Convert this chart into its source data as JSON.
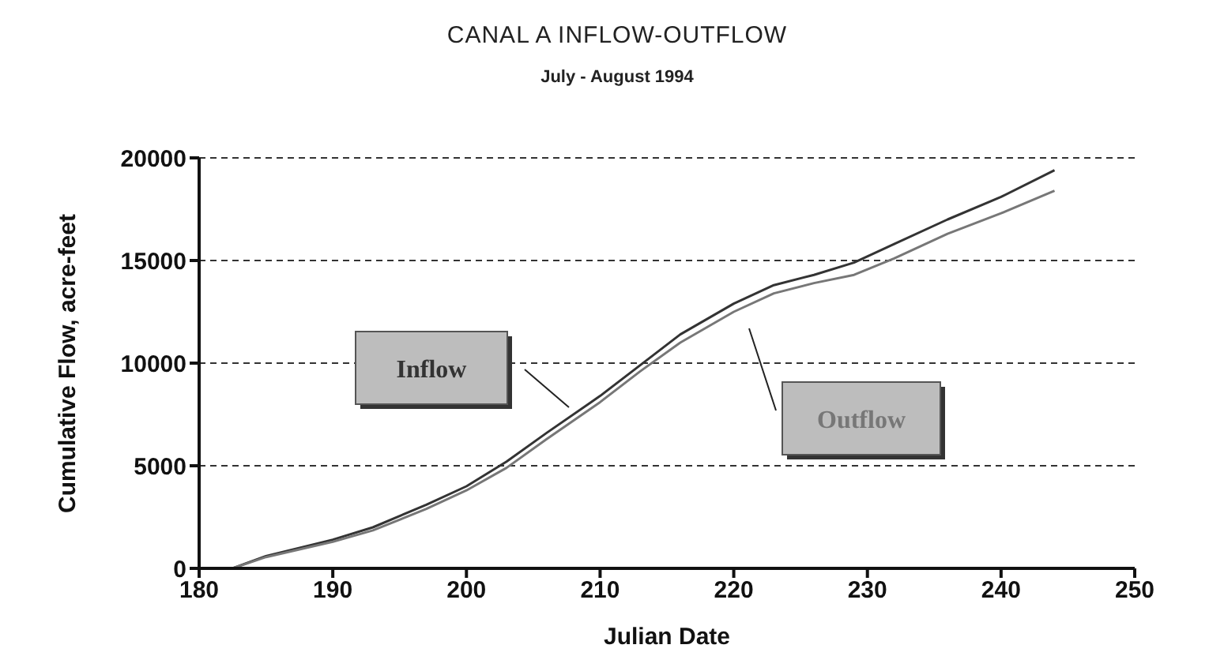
{
  "chart_data": {
    "type": "line",
    "title": "CANAL A INFLOW-OUTFLOW",
    "subtitle": "July - August 1994",
    "xlabel": "Julian Date",
    "ylabel": "Cumulative Flow, acre-feet",
    "x": [
      182.5,
      185,
      190,
      193,
      197,
      200,
      203,
      206,
      210,
      213,
      216,
      220,
      223,
      226,
      229,
      232,
      236,
      240,
      244
    ],
    "series": [
      {
        "name": "Inflow",
        "color": "#333333",
        "values": [
          0,
          600,
          1400,
          2000,
          3100,
          4000,
          5200,
          6600,
          8400,
          9900,
          11400,
          12900,
          13800,
          14300,
          14900,
          15800,
          17000,
          18100,
          19400
        ]
      },
      {
        "name": "Outflow",
        "color": "#777777",
        "values": [
          0,
          550,
          1300,
          1850,
          2900,
          3800,
          4900,
          6300,
          8100,
          9600,
          11000,
          12500,
          13400,
          13900,
          14300,
          15100,
          16300,
          17300,
          18400
        ]
      }
    ],
    "xlim": [
      180,
      250
    ],
    "xticks": [
      180,
      190,
      200,
      210,
      220,
      230,
      240,
      250
    ],
    "ylim": [
      0,
      20000
    ],
    "yticks": [
      0,
      5000,
      10000,
      15000,
      20000
    ],
    "grid": "y",
    "marker": "none",
    "line_style": "solid",
    "legend": false
  }
}
